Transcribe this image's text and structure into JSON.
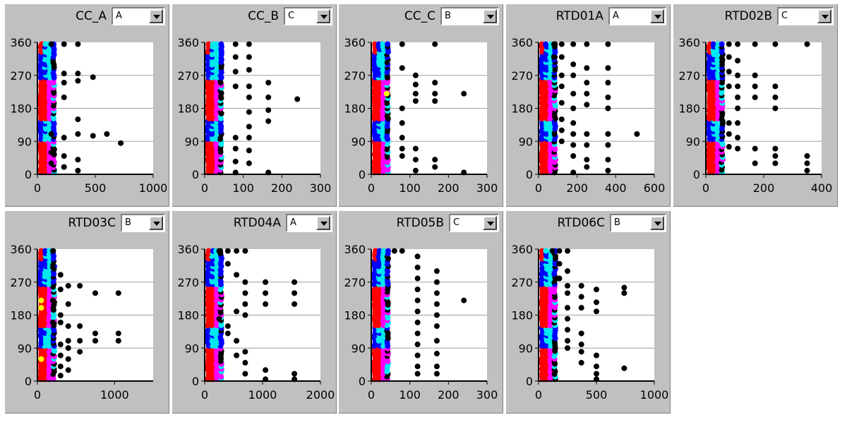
{
  "colors": {
    "grid": "#a0a0a0",
    "black": "#000000",
    "blue": "#0000ff",
    "cyan": "#00e8f0",
    "magenta": "#ff00ff",
    "red": "#ff0000",
    "yellow": "#ffff00"
  },
  "chart_data": [
    {
      "type": "scatter",
      "title": "CC_A",
      "selector": "A",
      "xticks": [
        "0",
        "500",
        "1000"
      ],
      "yticks": [
        "0",
        "90",
        "180",
        "270",
        "360"
      ],
      "xlim": [
        0,
        1000
      ],
      "ylim": [
        0,
        360
      ],
      "grid": true,
      "points": [
        [
          120,
          355
        ],
        [
          230,
          355
        ],
        [
          350,
          355
        ],
        [
          230,
          275
        ],
        [
          350,
          275
        ],
        [
          480,
          265
        ],
        [
          230,
          250
        ],
        [
          350,
          255
        ],
        [
          230,
          210
        ],
        [
          350,
          150
        ],
        [
          120,
          110
        ],
        [
          230,
          100
        ],
        [
          350,
          110
        ],
        [
          480,
          105
        ],
        [
          600,
          110
        ],
        [
          720,
          85
        ],
        [
          120,
          60
        ],
        [
          230,
          50
        ],
        [
          350,
          40
        ],
        [
          120,
          30
        ],
        [
          230,
          20
        ],
        [
          350,
          10
        ]
      ]
    },
    {
      "type": "scatter",
      "title": "CC_B",
      "selector": "C",
      "xticks": [
        "0",
        "100",
        "200",
        "300"
      ],
      "yticks": [
        "0",
        "90",
        "180",
        "270",
        "360"
      ],
      "xlim": [
        0,
        300
      ],
      "ylim": [
        0,
        360
      ],
      "grid": true,
      "points": [
        [
          80,
          355
        ],
        [
          115,
          355
        ],
        [
          80,
          320
        ],
        [
          115,
          320
        ],
        [
          80,
          280
        ],
        [
          115,
          285
        ],
        [
          80,
          240
        ],
        [
          115,
          240
        ],
        [
          165,
          250
        ],
        [
          115,
          210
        ],
        [
          165,
          210
        ],
        [
          240,
          205
        ],
        [
          165,
          175
        ],
        [
          115,
          170
        ],
        [
          165,
          145
        ],
        [
          115,
          130
        ],
        [
          80,
          100
        ],
        [
          115,
          100
        ],
        [
          80,
          70
        ],
        [
          115,
          65
        ],
        [
          80,
          35
        ],
        [
          115,
          30
        ],
        [
          165,
          5
        ],
        [
          80,
          5
        ]
      ]
    },
    {
      "type": "scatter",
      "title": "CC_C",
      "selector": "B",
      "xticks": [
        "0",
        "100",
        "200",
        "300"
      ],
      "yticks": [
        "0",
        "90",
        "180",
        "270",
        "360"
      ],
      "xlim": [
        0,
        300
      ],
      "ylim": [
        0,
        360
      ],
      "grid": true,
      "points": [
        [
          80,
          355
        ],
        [
          165,
          355
        ],
        [
          80,
          290
        ],
        [
          115,
          270
        ],
        [
          115,
          245
        ],
        [
          165,
          250
        ],
        [
          115,
          220
        ],
        [
          165,
          220
        ],
        [
          240,
          220
        ],
        [
          80,
          180
        ],
        [
          115,
          200
        ],
        [
          165,
          200
        ],
        [
          80,
          140
        ],
        [
          80,
          100
        ],
        [
          80,
          70
        ],
        [
          115,
          70
        ],
        [
          80,
          50
        ],
        [
          115,
          40
        ],
        [
          165,
          40
        ],
        [
          165,
          20
        ],
        [
          240,
          5
        ],
        [
          115,
          10
        ]
      ]
    },
    {
      "type": "scatter",
      "title": "RTD01A",
      "selector": "A",
      "xticks": [
        "0",
        "200",
        "400",
        "600"
      ],
      "yticks": [
        "0",
        "90",
        "180",
        "270",
        "360"
      ],
      "xlim": [
        0,
        600
      ],
      "ylim": [
        0,
        360
      ],
      "grid": true,
      "points": [
        [
          80,
          355
        ],
        [
          120,
          355
        ],
        [
          180,
          355
        ],
        [
          250,
          355
        ],
        [
          360,
          355
        ],
        [
          80,
          320
        ],
        [
          120,
          320
        ],
        [
          180,
          300
        ],
        [
          250,
          290
        ],
        [
          360,
          290
        ],
        [
          120,
          270
        ],
        [
          180,
          270
        ],
        [
          250,
          250
        ],
        [
          360,
          250
        ],
        [
          120,
          240
        ],
        [
          180,
          220
        ],
        [
          250,
          220
        ],
        [
          360,
          210
        ],
        [
          120,
          195
        ],
        [
          180,
          180
        ],
        [
          250,
          190
        ],
        [
          360,
          180
        ],
        [
          120,
          150
        ],
        [
          180,
          140
        ],
        [
          120,
          120
        ],
        [
          180,
          110
        ],
        [
          250,
          110
        ],
        [
          360,
          110
        ],
        [
          510,
          110
        ],
        [
          120,
          90
        ],
        [
          180,
          80
        ],
        [
          250,
          80
        ],
        [
          360,
          80
        ],
        [
          180,
          50
        ],
        [
          250,
          40
        ],
        [
          360,
          40
        ],
        [
          250,
          20
        ],
        [
          360,
          10
        ],
        [
          180,
          5
        ]
      ]
    },
    {
      "type": "scatter",
      "title": "RTD02B",
      "selector": "C",
      "xticks": [
        "0",
        "200",
        "400"
      ],
      "yticks": [
        "0",
        "90",
        "180",
        "270",
        "360"
      ],
      "xlim": [
        0,
        400
      ],
      "ylim": [
        0,
        360
      ],
      "grid": true,
      "points": [
        [
          80,
          355
        ],
        [
          110,
          355
        ],
        [
          170,
          355
        ],
        [
          240,
          355
        ],
        [
          350,
          355
        ],
        [
          80,
          320
        ],
        [
          110,
          310
        ],
        [
          80,
          280
        ],
        [
          110,
          270
        ],
        [
          170,
          270
        ],
        [
          80,
          240
        ],
        [
          110,
          240
        ],
        [
          170,
          240
        ],
        [
          240,
          240
        ],
        [
          110,
          210
        ],
        [
          170,
          210
        ],
        [
          240,
          210
        ],
        [
          110,
          180
        ],
        [
          240,
          180
        ],
        [
          80,
          140
        ],
        [
          110,
          140
        ],
        [
          80,
          110
        ],
        [
          110,
          100
        ],
        [
          80,
          75
        ],
        [
          110,
          70
        ],
        [
          170,
          70
        ],
        [
          240,
          70
        ],
        [
          240,
          50
        ],
        [
          350,
          50
        ],
        [
          170,
          30
        ],
        [
          240,
          30
        ],
        [
          350,
          30
        ],
        [
          350,
          10
        ]
      ]
    },
    {
      "type": "scatter",
      "title": "RTD03C",
      "selector": "B",
      "xticks": [
        "0",
        "1000"
      ],
      "yticks": [
        "0",
        "90",
        "180",
        "270",
        "360"
      ],
      "xlim": [
        0,
        1500
      ],
      "ylim": [
        0,
        360
      ],
      "grid": true,
      "points": [
        [
          200,
          355
        ],
        [
          200,
          310
        ],
        [
          300,
          290
        ],
        [
          400,
          260
        ],
        [
          550,
          260
        ],
        [
          750,
          240
        ],
        [
          1050,
          240
        ],
        [
          300,
          250
        ],
        [
          400,
          210
        ],
        [
          200,
          220
        ],
        [
          300,
          180
        ],
        [
          200,
          160
        ],
        [
          300,
          160
        ],
        [
          400,
          150
        ],
        [
          550,
          150
        ],
        [
          750,
          130
        ],
        [
          1050,
          130
        ],
        [
          400,
          110
        ],
        [
          550,
          110
        ],
        [
          750,
          110
        ],
        [
          1050,
          110
        ],
        [
          300,
          100
        ],
        [
          400,
          90
        ],
        [
          550,
          80
        ],
        [
          300,
          70
        ],
        [
          400,
          60
        ],
        [
          300,
          40
        ],
        [
          400,
          30
        ],
        [
          300,
          15
        ]
      ]
    },
    {
      "type": "scatter",
      "title": "RTD04A",
      "selector": "A",
      "xticks": [
        "0",
        "1000",
        "2000"
      ],
      "yticks": [
        "0",
        "90",
        "180",
        "270",
        "360"
      ],
      "xlim": [
        0,
        2000
      ],
      "ylim": [
        0,
        360
      ],
      "grid": true,
      "points": [
        [
          250,
          355
        ],
        [
          400,
          355
        ],
        [
          550,
          355
        ],
        [
          700,
          355
        ],
        [
          400,
          320
        ],
        [
          550,
          290
        ],
        [
          700,
          270
        ],
        [
          1050,
          270
        ],
        [
          1550,
          270
        ],
        [
          700,
          240
        ],
        [
          1050,
          240
        ],
        [
          1550,
          240
        ],
        [
          700,
          210
        ],
        [
          1050,
          210
        ],
        [
          1550,
          210
        ],
        [
          550,
          190
        ],
        [
          700,
          180
        ],
        [
          250,
          170
        ],
        [
          400,
          150
        ],
        [
          400,
          130
        ],
        [
          550,
          110
        ],
        [
          700,
          80
        ],
        [
          550,
          70
        ],
        [
          700,
          50
        ],
        [
          700,
          20
        ],
        [
          1050,
          30
        ],
        [
          1550,
          20
        ],
        [
          1050,
          5
        ],
        [
          1550,
          5
        ]
      ]
    },
    {
      "type": "scatter",
      "title": "RTD05B",
      "selector": "C",
      "xticks": [
        "0",
        "100",
        "200",
        "300"
      ],
      "yticks": [
        "0",
        "90",
        "180",
        "270",
        "360"
      ],
      "xlim": [
        0,
        300
      ],
      "ylim": [
        0,
        360
      ],
      "grid": true,
      "points": [
        [
          60,
          355
        ],
        [
          80,
          355
        ],
        [
          120,
          340
        ],
        [
          120,
          310
        ],
        [
          170,
          300
        ],
        [
          120,
          280
        ],
        [
          170,
          270
        ],
        [
          120,
          250
        ],
        [
          170,
          240
        ],
        [
          120,
          220
        ],
        [
          170,
          210
        ],
        [
          240,
          220
        ],
        [
          120,
          190
        ],
        [
          170,
          180
        ],
        [
          120,
          160
        ],
        [
          170,
          150
        ],
        [
          120,
          130
        ],
        [
          170,
          110
        ],
        [
          120,
          100
        ],
        [
          120,
          70
        ],
        [
          170,
          75
        ],
        [
          120,
          40
        ],
        [
          170,
          40
        ],
        [
          120,
          20
        ],
        [
          170,
          20
        ]
      ]
    },
    {
      "type": "scatter",
      "title": "RTD06C",
      "selector": "B",
      "xticks": [
        "0",
        "500",
        "1000"
      ],
      "yticks": [
        "0",
        "90",
        "180",
        "270",
        "360"
      ],
      "xlim": [
        0,
        1000
      ],
      "ylim": [
        0,
        360
      ],
      "grid": true,
      "points": [
        [
          120,
          355
        ],
        [
          180,
          355
        ],
        [
          250,
          355
        ],
        [
          180,
          320
        ],
        [
          250,
          300
        ],
        [
          180,
          280
        ],
        [
          250,
          260
        ],
        [
          370,
          260
        ],
        [
          500,
          250
        ],
        [
          740,
          255
        ],
        [
          740,
          240
        ],
        [
          250,
          240
        ],
        [
          370,
          230
        ],
        [
          500,
          215
        ],
        [
          250,
          200
        ],
        [
          370,
          200
        ],
        [
          500,
          190
        ],
        [
          250,
          170
        ],
        [
          250,
          140
        ],
        [
          370,
          130
        ],
        [
          250,
          110
        ],
        [
          370,
          100
        ],
        [
          250,
          90
        ],
        [
          370,
          80
        ],
        [
          500,
          70
        ],
        [
          370,
          50
        ],
        [
          500,
          40
        ],
        [
          740,
          35
        ],
        [
          500,
          20
        ],
        [
          500,
          5
        ]
      ]
    }
  ]
}
